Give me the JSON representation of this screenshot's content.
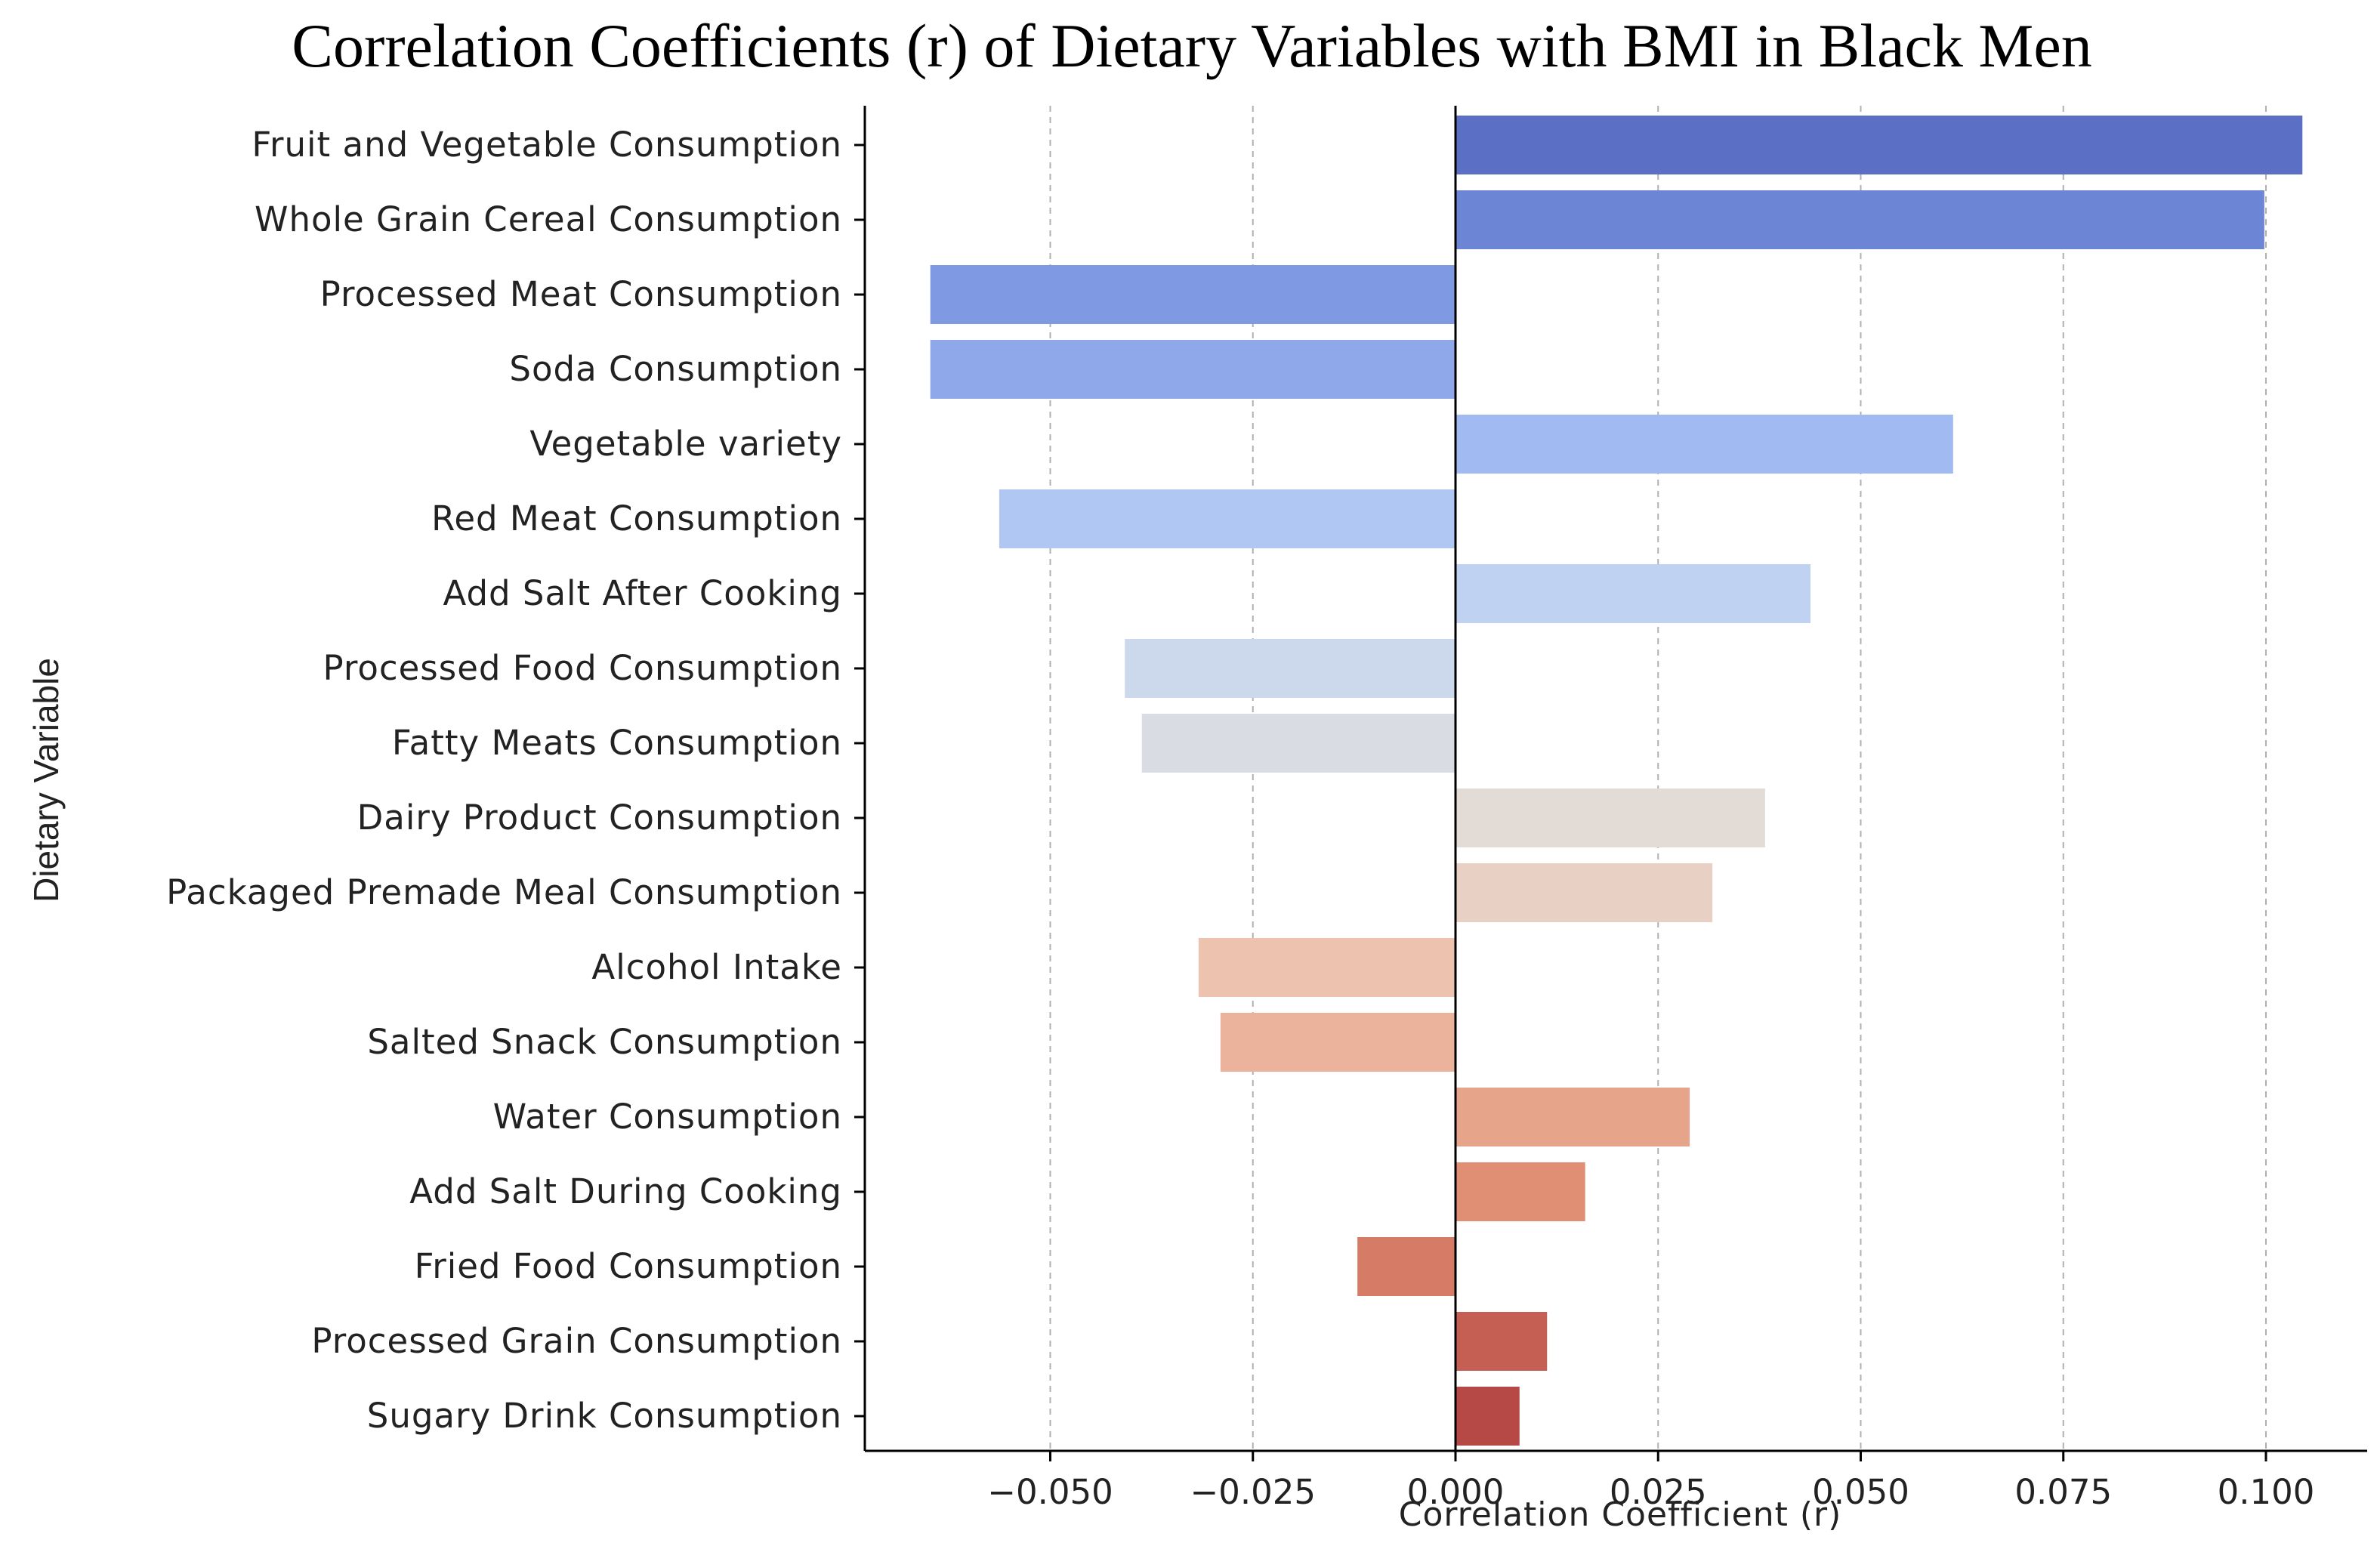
{
  "chart_data": {
    "type": "bar",
    "orientation": "horizontal",
    "title": "Correlation Coefficients (r) of Dietary Variables with BMI in Black Men",
    "xlabel": "Correlation Coefficient (r)",
    "ylabel": "Dietary Variable",
    "xlim": [
      -0.073,
      0.113
    ],
    "xticks": [
      -0.05,
      -0.025,
      0.0,
      0.025,
      0.05,
      0.075,
      0.1
    ],
    "xtick_labels": [
      "−0.050",
      "−0.025",
      "0.000",
      "0.025",
      "0.050",
      "0.075",
      "0.100"
    ],
    "grid": "vertical-dashed",
    "colormap": "coolwarm",
    "categories": [
      "Fruit and Vegetable Consumption",
      "Whole Grain Cereal Consumption",
      "Processed Meat Consumption",
      "Soda Consumption",
      "Vegetable variety",
      "Red Meat Consumption",
      "Add Salt After Cooking",
      "Processed Food Consumption",
      "Fatty Meats Consumption",
      "Dairy Product Consumption",
      "Packaged Premade Meal Consumption",
      "Alcohol Intake",
      "Salted Snack Consumption",
      "Water Consumption",
      "Add Salt During Cooking",
      "Fried Food Consumption",
      "Processed Grain Consumption",
      "Sugary Drink Consumption"
    ],
    "values": [
      0.1045,
      0.0998,
      -0.0648,
      -0.0648,
      0.0614,
      -0.0563,
      0.0438,
      -0.0408,
      -0.0387,
      0.0382,
      0.0317,
      -0.0317,
      -0.029,
      0.0289,
      0.016,
      -0.0121,
      0.0113,
      0.0079
    ],
    "colors": [
      "#5b6fc4",
      "#6c85d5",
      "#7f9ae2",
      "#8fa8ea",
      "#a1bbf2",
      "#b0c7f4",
      "#bfd2f1",
      "#ccd8ec",
      "#d9dce3",
      "#e3dbd5",
      "#e9d0c4",
      "#edc2ae",
      "#ebb39b",
      "#e6a48b",
      "#e08f74",
      "#d57b66",
      "#c65f53",
      "#b64846"
    ]
  }
}
